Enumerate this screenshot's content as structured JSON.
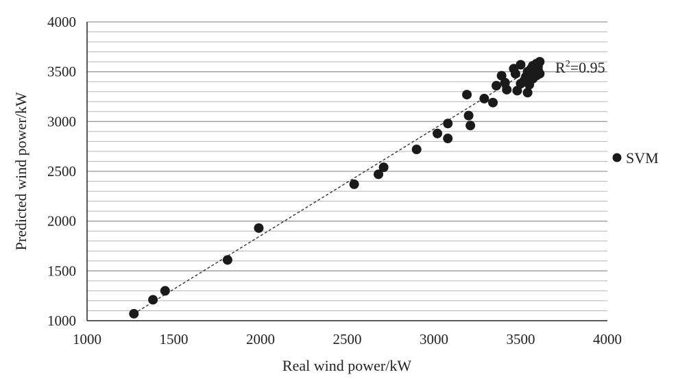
{
  "chart_data": {
    "type": "scatter",
    "title": "",
    "xlabel": "Real wind power/kW",
    "ylabel": "Predicted wind power/kW",
    "xlim": [
      1000,
      4000
    ],
    "ylim": [
      1000,
      4000
    ],
    "x_ticks": [
      "1000",
      "1500",
      "2000",
      "2500",
      "3000",
      "3500",
      "4000"
    ],
    "y_ticks": [
      "1000",
      "1500",
      "2000",
      "2500",
      "3000",
      "3500",
      "4000"
    ],
    "grid": "horizontal",
    "legend_position": "right",
    "annotation": {
      "base": "R",
      "sup": "2",
      "rest": "=0.95"
    },
    "trendline": {
      "style": "dashed",
      "from": [
        1270,
        1070
      ],
      "to": [
        3610,
        3580
      ]
    },
    "series": [
      {
        "name": "SVM",
        "color": "#1a1a1a",
        "points": [
          [
            1270,
            1070
          ],
          [
            1380,
            1210
          ],
          [
            1450,
            1300
          ],
          [
            1810,
            1610
          ],
          [
            1990,
            1930
          ],
          [
            2540,
            2370
          ],
          [
            2680,
            2470
          ],
          [
            2710,
            2540
          ],
          [
            2900,
            2720
          ],
          [
            3020,
            2880
          ],
          [
            3080,
            2980
          ],
          [
            3080,
            2830
          ],
          [
            3190,
            3270
          ],
          [
            3200,
            3060
          ],
          [
            3210,
            2960
          ],
          [
            3290,
            3230
          ],
          [
            3340,
            3190
          ],
          [
            3360,
            3360
          ],
          [
            3390,
            3460
          ],
          [
            3410,
            3390
          ],
          [
            3420,
            3320
          ],
          [
            3460,
            3530
          ],
          [
            3470,
            3480
          ],
          [
            3480,
            3310
          ],
          [
            3500,
            3380
          ],
          [
            3500,
            3570
          ],
          [
            3520,
            3410
          ],
          [
            3530,
            3450
          ],
          [
            3540,
            3290
          ],
          [
            3540,
            3500
          ],
          [
            3550,
            3370
          ],
          [
            3550,
            3480
          ],
          [
            3560,
            3530
          ],
          [
            3570,
            3430
          ],
          [
            3570,
            3560
          ],
          [
            3580,
            3500
          ],
          [
            3590,
            3460
          ],
          [
            3590,
            3580
          ],
          [
            3600,
            3520
          ],
          [
            3600,
            3550
          ],
          [
            3610,
            3600
          ],
          [
            3610,
            3480
          ]
        ]
      }
    ]
  }
}
